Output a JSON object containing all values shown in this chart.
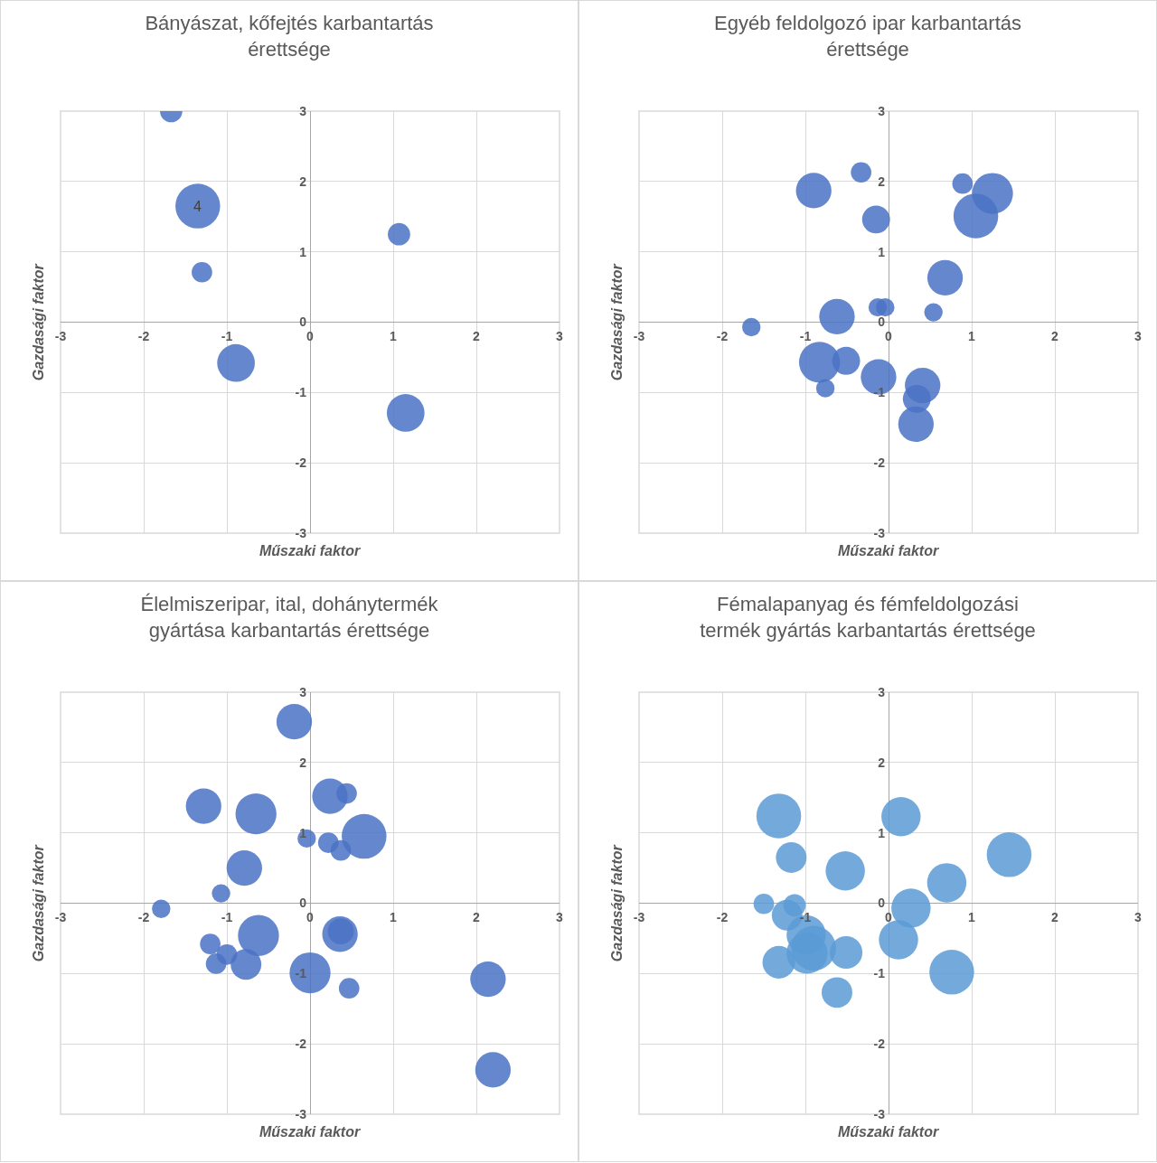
{
  "chart_data": [
    {
      "type": "bubble",
      "title": "Bányászat, kőfejtés karbantartás érettsége",
      "xlabel": "Műszaki faktor",
      "ylabel": "Gazdasági faktor",
      "color": "#4a72c4",
      "xlim": [
        -3,
        3
      ],
      "ylim": [
        -3,
        3
      ],
      "xticks": [
        -3,
        -2,
        -1,
        0,
        1,
        2,
        3
      ],
      "yticks": [
        -3,
        -2,
        -1,
        0,
        1,
        2,
        3
      ],
      "grid": true,
      "x": [
        -1.67,
        -1.35,
        -1.3,
        1.07,
        -0.89,
        1.15
      ],
      "values": [
        3.0,
        1.65,
        0.71,
        1.25,
        -0.58,
        -1.29
      ],
      "sizes": [
        0.25,
        1,
        0.21,
        0.25,
        0.71,
        0.71
      ],
      "annotations": [
        {
          "text": "4",
          "x": -1.35,
          "y": 1.65
        }
      ]
    },
    {
      "type": "bubble",
      "title": "Egyéb feldolgozó ipar karbantartás érettsége",
      "xlabel": "Műszaki faktor",
      "ylabel": "Gazdasági faktor",
      "color": "#4a72c4",
      "xlim": [
        -3,
        3
      ],
      "ylim": [
        -3,
        3
      ],
      "xticks": [
        -3,
        -2,
        -1,
        0,
        1,
        2,
        3
      ],
      "yticks": [
        -3,
        -2,
        -1,
        0,
        1,
        2,
        3
      ],
      "grid": true,
      "x": [
        -0.33,
        -0.9,
        -0.15,
        0.89,
        1.25,
        1.05,
        0.68,
        -0.13,
        -0.04,
        0.54,
        -0.62,
        -1.65,
        -0.83,
        -0.51,
        -0.12,
        -0.76,
        0.41,
        0.34,
        0.33
      ],
      "values": [
        2.13,
        1.87,
        1.46,
        1.97,
        1.83,
        1.51,
        0.63,
        0.21,
        0.21,
        0.14,
        0.08,
        -0.07,
        -0.57,
        -0.55,
        -0.78,
        -0.94,
        -0.9,
        -1.09,
        -1.45
      ],
      "sizes": [
        0.21,
        0.63,
        0.39,
        0.21,
        0.84,
        1,
        0.63,
        0.17,
        0.17,
        0.17,
        0.63,
        0.17,
        0.84,
        0.39,
        0.63,
        0.17,
        0.63,
        0.39,
        0.63
      ]
    },
    {
      "type": "bubble",
      "title": "Élelmiszeripar, ital, dohánytermék gyártása karbantartás érettsége",
      "xlabel": "Műszaki faktor",
      "ylabel": "Gazdasági faktor",
      "color": "#4a72c4",
      "xlim": [
        -3,
        3
      ],
      "ylim": [
        -3,
        3
      ],
      "xticks": [
        -3,
        -2,
        -1,
        0,
        1,
        2,
        3
      ],
      "yticks": [
        -3,
        -2,
        -1,
        0,
        1,
        2,
        3
      ],
      "grid": true,
      "x": [
        -0.19,
        -1.28,
        -0.65,
        0.24,
        0.44,
        -0.04,
        0.22,
        0.37,
        0.65,
        -0.79,
        -1.07,
        -1.79,
        -0.62,
        0.36,
        0.37,
        -1.2,
        -1.0,
        -1.13,
        -0.77,
        0.0,
        0.47,
        2.14,
        2.2
      ],
      "values": [
        2.58,
        1.38,
        1.27,
        1.52,
        1.56,
        0.92,
        0.86,
        0.75,
        0.95,
        0.5,
        0.14,
        -0.08,
        -0.46,
        -0.44,
        -0.4,
        -0.58,
        -0.73,
        -0.86,
        -0.87,
        -0.99,
        -1.21,
        -1.08,
        -2.37
      ],
      "sizes": [
        0.63,
        0.63,
        0.84,
        0.63,
        0.21,
        0.17,
        0.21,
        0.21,
        1,
        0.63,
        0.17,
        0.17,
        0.84,
        0.63,
        0.34,
        0.21,
        0.21,
        0.21,
        0.47,
        0.84,
        0.21,
        0.63,
        0.63
      ]
    },
    {
      "type": "bubble",
      "title": "Fémalapanyag és fémfeldolgozási termék gyártás karbantartás érettsége",
      "xlabel": "Műszaki faktor",
      "ylabel": "Gazdasági faktor",
      "color": "#5b9bd5",
      "xlim": [
        -3,
        3
      ],
      "ylim": [
        -3,
        3
      ],
      "xticks": [
        -3,
        -2,
        -1,
        0,
        1,
        2,
        3
      ],
      "yticks": [
        -3,
        -2,
        -1,
        0,
        1,
        2,
        3
      ],
      "grid": true,
      "x": [
        -1.32,
        0.15,
        -1.17,
        -0.52,
        1.45,
        0.7,
        0.27,
        -1.5,
        -1.13,
        -1.22,
        -0.99,
        -0.9,
        -0.98,
        -1.32,
        -0.51,
        0.12,
        0.76,
        -0.62
      ],
      "values": [
        1.24,
        1.23,
        0.65,
        0.46,
        0.69,
        0.29,
        -0.07,
        -0.01,
        -0.03,
        -0.17,
        -0.45,
        -0.64,
        -0.71,
        -0.84,
        -0.7,
        -0.52,
        -0.98,
        -1.27
      ],
      "sizes": [
        1,
        0.77,
        0.47,
        0.77,
        1,
        0.77,
        0.77,
        0.21,
        0.25,
        0.47,
        0.77,
        1,
        0.84,
        0.53,
        0.53,
        0.77,
        1,
        0.47
      ]
    }
  ]
}
